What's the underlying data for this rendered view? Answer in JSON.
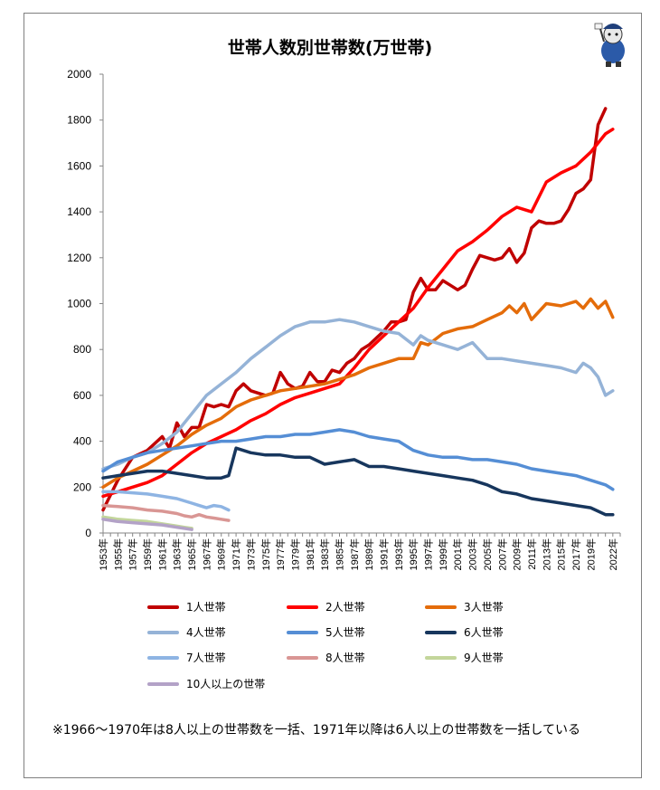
{
  "chart_data": {
    "type": "line",
    "title": "世帯人数別世帯数(万世帯)",
    "ylim": [
      0,
      2000
    ],
    "yticks": [
      0,
      200,
      400,
      600,
      800,
      1000,
      1200,
      1400,
      1600,
      1800,
      2000
    ],
    "xlim": [
      1953,
      2023
    ],
    "xticks": [
      "1953年",
      "1955年",
      "1957年",
      "1959年",
      "1961年",
      "1963年",
      "1965年",
      "1967年",
      "1969年",
      "1971年",
      "1973年",
      "1975年",
      "1977年",
      "1979年",
      "1981年",
      "1983年",
      "1985年",
      "1987年",
      "1989年",
      "1991年",
      "1993年",
      "1995年",
      "1997年",
      "1999年",
      "2001年",
      "2003年",
      "2005年",
      "2007年",
      "2009年",
      "2011年",
      "2013年",
      "2015年",
      "2017年",
      "2019年",
      "2022年"
    ],
    "grid": false,
    "legend_position": "bottom",
    "series": [
      {
        "name": "1人世帯",
        "color": "#c00000",
        "x": [
          1953,
          1955,
          1957,
          1959,
          1961,
          1962,
          1963,
          1964,
          1965,
          1966,
          1967,
          1968,
          1969,
          1970,
          1971,
          1972,
          1973,
          1974,
          1975,
          1976,
          1977,
          1978,
          1979,
          1980,
          1981,
          1982,
          1983,
          1984,
          1985,
          1986,
          1987,
          1988,
          1989,
          1990,
          1991,
          1992,
          1993,
          1994,
          1995,
          1996,
          1997,
          1998,
          1999,
          2000,
          2001,
          2002,
          2003,
          2004,
          2005,
          2006,
          2007,
          2008,
          2009,
          2010,
          2011,
          2012,
          2013,
          2014,
          2015,
          2016,
          2017,
          2018,
          2019,
          2020,
          2021,
          2022,
          2023
        ],
        "y": [
          100,
          230,
          330,
          360,
          420,
          370,
          480,
          420,
          460,
          460,
          560,
          550,
          560,
          550,
          620,
          650,
          620,
          610,
          600,
          610,
          700,
          650,
          630,
          640,
          700,
          660,
          660,
          710,
          700,
          740,
          760,
          800,
          820,
          850,
          880,
          920,
          920,
          930,
          1050,
          1110,
          1060,
          1060,
          1100,
          1080,
          1060,
          1080,
          1150,
          1210,
          1200,
          1190,
          1200,
          1240,
          1180,
          1220,
          1330,
          1360,
          1350,
          1350,
          1360,
          1410,
          1480,
          1500,
          1540,
          1780,
          1850,
          null,
          null
        ]
      },
      {
        "name": "2人世帯",
        "color": "#ff0000",
        "x": [
          1953,
          1955,
          1957,
          1959,
          1961,
          1963,
          1965,
          1967,
          1969,
          1971,
          1973,
          1975,
          1977,
          1979,
          1981,
          1983,
          1985,
          1987,
          1989,
          1991,
          1993,
          1995,
          1997,
          1999,
          2001,
          2003,
          2005,
          2007,
          2009,
          2010,
          2011,
          2013,
          2015,
          2017,
          2019,
          2021,
          2022
        ],
        "y": [
          160,
          180,
          200,
          220,
          250,
          300,
          350,
          390,
          420,
          450,
          490,
          520,
          560,
          590,
          610,
          630,
          650,
          720,
          800,
          860,
          920,
          980,
          1070,
          1150,
          1230,
          1270,
          1320,
          1380,
          1420,
          1410,
          1400,
          1530,
          1570,
          1600,
          1660,
          1740,
          1760
        ]
      },
      {
        "name": "3人世帯",
        "color": "#e46c0a",
        "x": [
          1953,
          1955,
          1957,
          1959,
          1961,
          1963,
          1965,
          1967,
          1969,
          1971,
          1973,
          1975,
          1977,
          1979,
          1981,
          1983,
          1985,
          1987,
          1989,
          1991,
          1993,
          1995,
          1996,
          1997,
          1999,
          2001,
          2003,
          2005,
          2007,
          2008,
          2009,
          2010,
          2011,
          2013,
          2015,
          2017,
          2018,
          2019,
          2020,
          2021,
          2022
        ],
        "y": [
          200,
          240,
          270,
          300,
          340,
          380,
          430,
          470,
          500,
          550,
          580,
          600,
          620,
          630,
          640,
          650,
          670,
          690,
          720,
          740,
          760,
          760,
          830,
          820,
          870,
          890,
          900,
          930,
          960,
          990,
          960,
          1000,
          930,
          1000,
          990,
          1010,
          980,
          1020,
          980,
          1010,
          940
        ]
      },
      {
        "name": "4人世帯",
        "color": "#95b3d7",
        "x": [
          1953,
          1955,
          1957,
          1959,
          1961,
          1963,
          1965,
          1967,
          1969,
          1971,
          1973,
          1975,
          1977,
          1979,
          1981,
          1983,
          1985,
          1987,
          1989,
          1991,
          1993,
          1995,
          1996,
          1997,
          1999,
          2001,
          2003,
          2005,
          2007,
          2009,
          2011,
          2013,
          2015,
          2017,
          2018,
          2019,
          2020,
          2021,
          2022
        ],
        "y": [
          280,
          300,
          330,
          350,
          390,
          440,
          520,
          600,
          650,
          700,
          760,
          810,
          860,
          900,
          920,
          920,
          930,
          920,
          900,
          880,
          870,
          820,
          860,
          840,
          820,
          800,
          830,
          760,
          760,
          750,
          740,
          730,
          720,
          700,
          740,
          720,
          680,
          600,
          620
        ]
      },
      {
        "name": "5人世帯",
        "color": "#558ed5",
        "x": [
          1953,
          1955,
          1957,
          1959,
          1961,
          1963,
          1965,
          1967,
          1969,
          1971,
          1973,
          1975,
          1977,
          1979,
          1981,
          1983,
          1985,
          1987,
          1989,
          1991,
          1993,
          1995,
          1997,
          1999,
          2001,
          2003,
          2005,
          2007,
          2009,
          2011,
          2013,
          2015,
          2017,
          2019,
          2021,
          2022
        ],
        "y": [
          270,
          310,
          330,
          350,
          360,
          370,
          380,
          390,
          400,
          400,
          410,
          420,
          420,
          430,
          430,
          440,
          450,
          440,
          420,
          410,
          400,
          360,
          340,
          330,
          330,
          320,
          320,
          310,
          300,
          280,
          270,
          260,
          250,
          230,
          210,
          190
        ]
      },
      {
        "name": "6人世帯",
        "color": "#17365d",
        "x": [
          1953,
          1955,
          1957,
          1959,
          1961,
          1963,
          1965,
          1967,
          1969,
          1970,
          1971,
          1973,
          1975,
          1977,
          1979,
          1981,
          1983,
          1985,
          1987,
          1989,
          1991,
          1993,
          1995,
          1997,
          1999,
          2001,
          2003,
          2005,
          2007,
          2009,
          2011,
          2013,
          2015,
          2017,
          2019,
          2021,
          2022
        ],
        "y": [
          240,
          250,
          260,
          270,
          270,
          260,
          250,
          240,
          240,
          250,
          370,
          350,
          340,
          340,
          330,
          330,
          300,
          310,
          320,
          290,
          290,
          280,
          270,
          260,
          250,
          240,
          230,
          210,
          180,
          170,
          150,
          140,
          130,
          120,
          110,
          80,
          80
        ]
      },
      {
        "name": "7人世帯",
        "color": "#8eb4e3",
        "x": [
          1953,
          1955,
          1957,
          1959,
          1961,
          1963,
          1965,
          1966,
          1967,
          1968,
          1969,
          1970
        ],
        "y": [
          180,
          180,
          175,
          170,
          160,
          150,
          130,
          120,
          110,
          120,
          115,
          100
        ]
      },
      {
        "name": "8人世帯",
        "color": "#d99694",
        "x": [
          1953,
          1955,
          1957,
          1959,
          1961,
          1963,
          1964,
          1965,
          1966,
          1967,
          1968,
          1969,
          1970
        ],
        "y": [
          120,
          115,
          110,
          100,
          95,
          85,
          75,
          70,
          80,
          70,
          65,
          60,
          55
        ]
      },
      {
        "name": "9人世帯",
        "color": "#c3d69b",
        "x": [
          1953,
          1955,
          1957,
          1959,
          1961,
          1963,
          1964,
          1965
        ],
        "y": [
          70,
          60,
          55,
          50,
          40,
          30,
          25,
          20
        ]
      },
      {
        "name": "10人以上の世帯",
        "color": "#b3a2c7",
        "x": [
          1953,
          1955,
          1957,
          1959,
          1961,
          1963,
          1964,
          1965
        ],
        "y": [
          60,
          50,
          45,
          40,
          35,
          25,
          20,
          15
        ]
      }
    ]
  },
  "note": "※1966〜1970年は8人以上の世帯数を一括、1971年以降は6人以上の世帯数を一括している"
}
